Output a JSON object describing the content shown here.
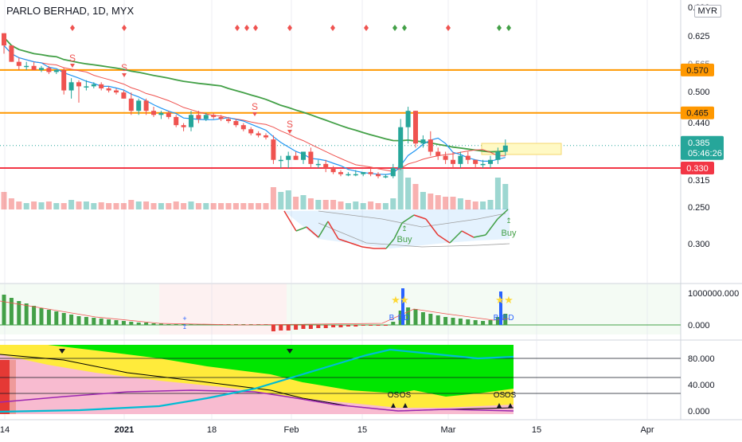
{
  "header": {
    "symbol_title": "PARLO BERHAD, 1D, MYX",
    "currency_button": "MYR"
  },
  "colors": {
    "up": "#26a69a",
    "down": "#ef5350",
    "ema_green": "#43a047",
    "ema_red": "#ef5350",
    "ema_blue": "#2196f3",
    "orange_level": "#ff9800",
    "red_level": "#f23645",
    "grid": "#e0e3eb",
    "zone_yellow": "#fff9c4"
  },
  "chart_data": [
    {
      "type": "candlestick",
      "title": "PARLO BERHAD, 1D, MYX",
      "price_axis_labels": [
        "0.625",
        "0.565",
        "0.500",
        "0.440",
        "0.385",
        "0.315",
        "0.250",
        "0.300"
      ],
      "price_axis_top_partial": "0.690",
      "horizontal_levels": [
        {
          "price": 0.57,
          "label": "0.570",
          "color": "orange"
        },
        {
          "price": 0.465,
          "label": "0.465",
          "color": "orange"
        },
        {
          "price": 0.33,
          "label": "0.330",
          "color": "red"
        }
      ],
      "last_price": {
        "label": "0.385",
        "countdown": "05:46:26"
      },
      "x_tick_labels": [
        "14",
        "2021",
        "18",
        "Feb",
        "15",
        "Mar",
        "15",
        "Apr"
      ],
      "candles_ohlc": [
        [
          0.66,
          0.66,
          0.61,
          0.63
        ],
        [
          0.63,
          0.63,
          0.59,
          0.59
        ],
        [
          0.59,
          0.6,
          0.57,
          0.58
        ],
        [
          0.58,
          0.59,
          0.57,
          0.58
        ],
        [
          0.58,
          0.59,
          0.57,
          0.57
        ],
        [
          0.57,
          0.58,
          0.565,
          0.575
        ],
        [
          0.575,
          0.58,
          0.56,
          0.565
        ],
        [
          0.565,
          0.57,
          0.56,
          0.57
        ],
        [
          0.57,
          0.575,
          0.51,
          0.52
        ],
        [
          0.52,
          0.55,
          0.5,
          0.54
        ],
        [
          0.54,
          0.545,
          0.49,
          0.53
        ],
        [
          0.53,
          0.545,
          0.52,
          0.53
        ],
        [
          0.53,
          0.54,
          0.525,
          0.535
        ],
        [
          0.535,
          0.54,
          0.52,
          0.525
        ],
        [
          0.525,
          0.53,
          0.515,
          0.52
        ],
        [
          0.52,
          0.525,
          0.51,
          0.515
        ],
        [
          0.515,
          0.52,
          0.5,
          0.5
        ],
        [
          0.5,
          0.515,
          0.46,
          0.47
        ],
        [
          0.47,
          0.5,
          0.46,
          0.495
        ],
        [
          0.495,
          0.5,
          0.46,
          0.47
        ],
        [
          0.47,
          0.48,
          0.455,
          0.46
        ],
        [
          0.46,
          0.47,
          0.45,
          0.465
        ],
        [
          0.465,
          0.47,
          0.45,
          0.455
        ],
        [
          0.455,
          0.46,
          0.43,
          0.435
        ],
        [
          0.435,
          0.44,
          0.42,
          0.43
        ],
        [
          0.43,
          0.47,
          0.42,
          0.46
        ],
        [
          0.46,
          0.47,
          0.44,
          0.45
        ],
        [
          0.45,
          0.465,
          0.445,
          0.46
        ],
        [
          0.46,
          0.465,
          0.45,
          0.455
        ],
        [
          0.455,
          0.46,
          0.445,
          0.45
        ],
        [
          0.45,
          0.455,
          0.44,
          0.445
        ],
        [
          0.445,
          0.45,
          0.43,
          0.435
        ],
        [
          0.435,
          0.44,
          0.42,
          0.425
        ],
        [
          0.425,
          0.43,
          0.41,
          0.415
        ],
        [
          0.415,
          0.42,
          0.405,
          0.41
        ],
        [
          0.41,
          0.415,
          0.4,
          0.405
        ],
        [
          0.4,
          0.41,
          0.34,
          0.35
        ],
        [
          0.35,
          0.36,
          0.33,
          0.35
        ],
        [
          0.35,
          0.37,
          0.33,
          0.36
        ],
        [
          0.36,
          0.37,
          0.35,
          0.35
        ],
        [
          0.35,
          0.37,
          0.34,
          0.37
        ],
        [
          0.37,
          0.38,
          0.33,
          0.34
        ],
        [
          0.34,
          0.35,
          0.33,
          0.34
        ],
        [
          0.34,
          0.35,
          0.32,
          0.33
        ],
        [
          0.33,
          0.335,
          0.315,
          0.32
        ],
        [
          0.32,
          0.325,
          0.31,
          0.315
        ],
        [
          0.315,
          0.32,
          0.31,
          0.315
        ],
        [
          0.315,
          0.325,
          0.31,
          0.315
        ],
        [
          0.315,
          0.32,
          0.31,
          0.32
        ],
        [
          0.32,
          0.33,
          0.31,
          0.315
        ],
        [
          0.315,
          0.32,
          0.305,
          0.31
        ],
        [
          0.31,
          0.315,
          0.305,
          0.31
        ],
        [
          0.31,
          0.34,
          0.305,
          0.33
        ],
        [
          0.33,
          0.45,
          0.325,
          0.43
        ],
        [
          0.43,
          0.48,
          0.39,
          0.47
        ],
        [
          0.47,
          0.47,
          0.38,
          0.39
        ],
        [
          0.39,
          0.41,
          0.38,
          0.4
        ],
        [
          0.4,
          0.42,
          0.36,
          0.37
        ],
        [
          0.37,
          0.38,
          0.35,
          0.36
        ],
        [
          0.36,
          0.37,
          0.34,
          0.35
        ],
        [
          0.35,
          0.37,
          0.33,
          0.34
        ],
        [
          0.34,
          0.37,
          0.33,
          0.36
        ],
        [
          0.36,
          0.37,
          0.34,
          0.35
        ],
        [
          0.35,
          0.35,
          0.33,
          0.34
        ],
        [
          0.34,
          0.35,
          0.33,
          0.34
        ],
        [
          0.34,
          0.36,
          0.33,
          0.35
        ],
        [
          0.35,
          0.38,
          0.34,
          0.37
        ],
        [
          0.37,
          0.4,
          0.36,
          0.385
        ]
      ],
      "signal_labels": {
        "sell": "S",
        "buy": "Buy"
      }
    },
    {
      "type": "bar",
      "panel": "momentum histogram",
      "axis_labels": [
        "1000000.000",
        "0.000"
      ],
      "annotations": [
        "B",
        "B",
        "D"
      ]
    },
    {
      "type": "area",
      "panel": "stacked oscillator",
      "axis_labels": [
        "80.000",
        "40.000",
        "0.000"
      ],
      "annotations": [
        "OS",
        "OS"
      ]
    }
  ]
}
